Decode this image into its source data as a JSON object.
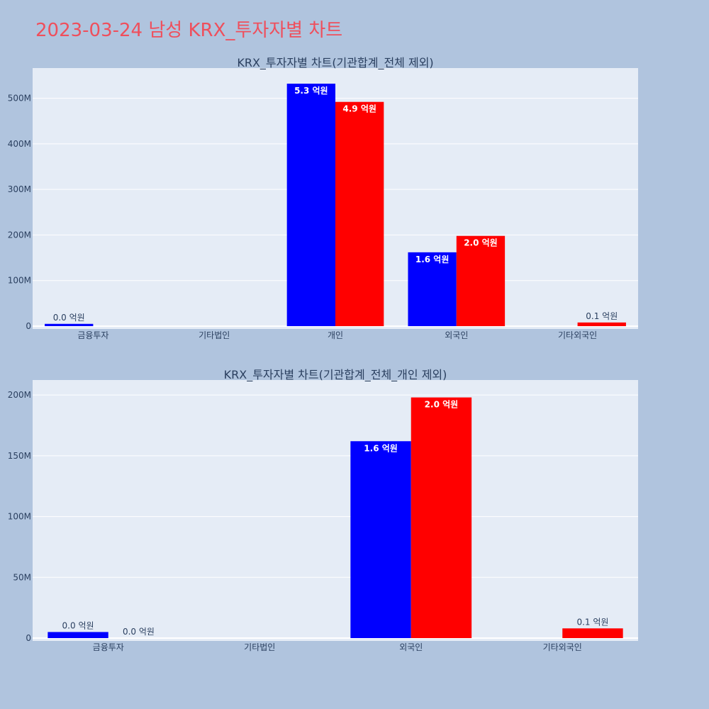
{
  "title": "2023-03-24 남성 KRX_투자자별 차트",
  "colors": {
    "background": "#b0c4de",
    "plot_bg": "#e5ecf6",
    "buy": "#0000ff",
    "sell": "#ff0000",
    "title": "#ef4f5c",
    "text": "#2a3f5f"
  },
  "chart_data": [
    {
      "type": "bar",
      "title": "KRX_투자자별 차트(기관합계_전체 제외)",
      "categories": [
        "금융투자",
        "기타법인",
        "개인",
        "외국인",
        "기타외국인"
      ],
      "series": [
        {
          "color": "#0000ff",
          "values": [
            5000000,
            0,
            532000000,
            162000000,
            0
          ],
          "labels": [
            "0.0 억원",
            "",
            "5.3 억원",
            "1.6 억원",
            ""
          ]
        },
        {
          "color": "#ff0000",
          "values": [
            0,
            0,
            492000000,
            198000000,
            8000000
          ],
          "labels": [
            "",
            "",
            "4.9 억원",
            "2.0 억원",
            "0.1 억원"
          ]
        }
      ],
      "yticks": [
        0,
        100000000,
        200000000,
        300000000,
        400000000,
        500000000
      ],
      "ytick_labels": [
        "0",
        "100M",
        "200M",
        "300M",
        "400M",
        "500M"
      ],
      "ylim": [
        0,
        560000000
      ],
      "grid": true
    },
    {
      "type": "bar",
      "title": "KRX_투자자별 차트(기관합계_전체_개인 제외)",
      "categories": [
        "금융투자",
        "기타법인",
        "외국인",
        "기타외국인"
      ],
      "series": [
        {
          "color": "#0000ff",
          "values": [
            5000000,
            0,
            162000000,
            0
          ],
          "labels": [
            "0.0 억원",
            "",
            "1.6 억원",
            ""
          ]
        },
        {
          "color": "#ff0000",
          "values": [
            0,
            0,
            198000000,
            8000000
          ],
          "labels": [
            "0.0 억원",
            "",
            "2.0 억원",
            "0.1 억원"
          ]
        }
      ],
      "yticks": [
        0,
        50000000,
        100000000,
        150000000,
        200000000
      ],
      "ytick_labels": [
        "0",
        "50M",
        "100M",
        "150M",
        "200M"
      ],
      "ylim": [
        0,
        210000000
      ],
      "grid": true
    }
  ]
}
